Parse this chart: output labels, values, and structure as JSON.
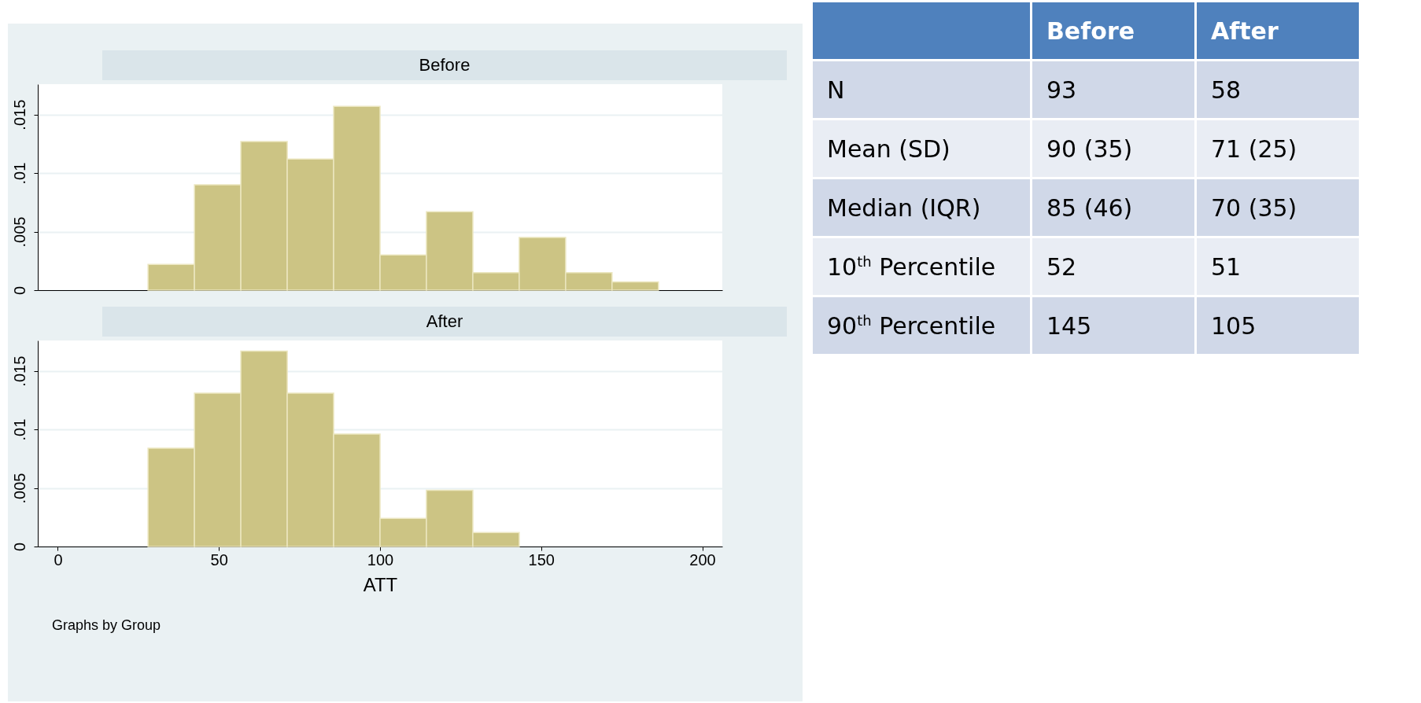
{
  "chart_data": [
    {
      "type": "histogram",
      "title": "Before",
      "bins": [
        28,
        42.4,
        56.8,
        71.2,
        85.6,
        100,
        114.4,
        128.8,
        143.2,
        157.6,
        172,
        186.4
      ],
      "values": [
        0.0022,
        0.009,
        0.0127,
        0.0112,
        0.0157,
        0.003,
        0.0067,
        0.0015,
        0.0045,
        0.0015,
        0.0007
      ],
      "color": "#ccc484",
      "xlim": [
        -5,
        205
      ],
      "xticks": [
        0,
        50,
        100,
        150,
        200
      ],
      "ylim": [
        0,
        0.0176
      ],
      "yticks": [
        0,
        {
          "value": 0.005,
          "label": ".005"
        },
        {
          "value": 0.01,
          "label": ".01"
        },
        {
          "value": 0.015,
          "label": ".015"
        }
      ],
      "grid": "y",
      "tick_labels": "y"
    },
    {
      "type": "histogram",
      "title": "After",
      "xlabel": "ATT",
      "bins": [
        28,
        42.4,
        56.8,
        71.2,
        85.6,
        100,
        114.4,
        128.8,
        143.2
      ],
      "values": [
        0.0084,
        0.0131,
        0.0167,
        0.0131,
        0.0096,
        0.0024,
        0.0048,
        0.0012
      ],
      "color": "#ccc484",
      "xlim": [
        -5,
        205
      ],
      "xticks": [
        0,
        50,
        100,
        150,
        200
      ],
      "ylim": [
        0,
        0.0176
      ],
      "yticks": [
        0,
        {
          "value": 0.005,
          "label": ".005"
        },
        {
          "value": 0.01,
          "label": ".01"
        },
        {
          "value": 0.015,
          "label": ".015"
        }
      ],
      "grid": "y",
      "annotations": [
        "Graphs by Group"
      ]
    },
    {
      "type": "other",
      "annotations": [
        "Before",
        "After",
        "N",
        "93",
        "58",
        "Mean (SD)",
        "90 (35)",
        "71 (25)",
        "Median (IQR)",
        "85 (46)",
        "70 (35)",
        "10$^{th}$ Percentile",
        "52",
        "51",
        "90$^{th}$ Percentile",
        "145",
        "105"
      ]
    }
  ]
}
